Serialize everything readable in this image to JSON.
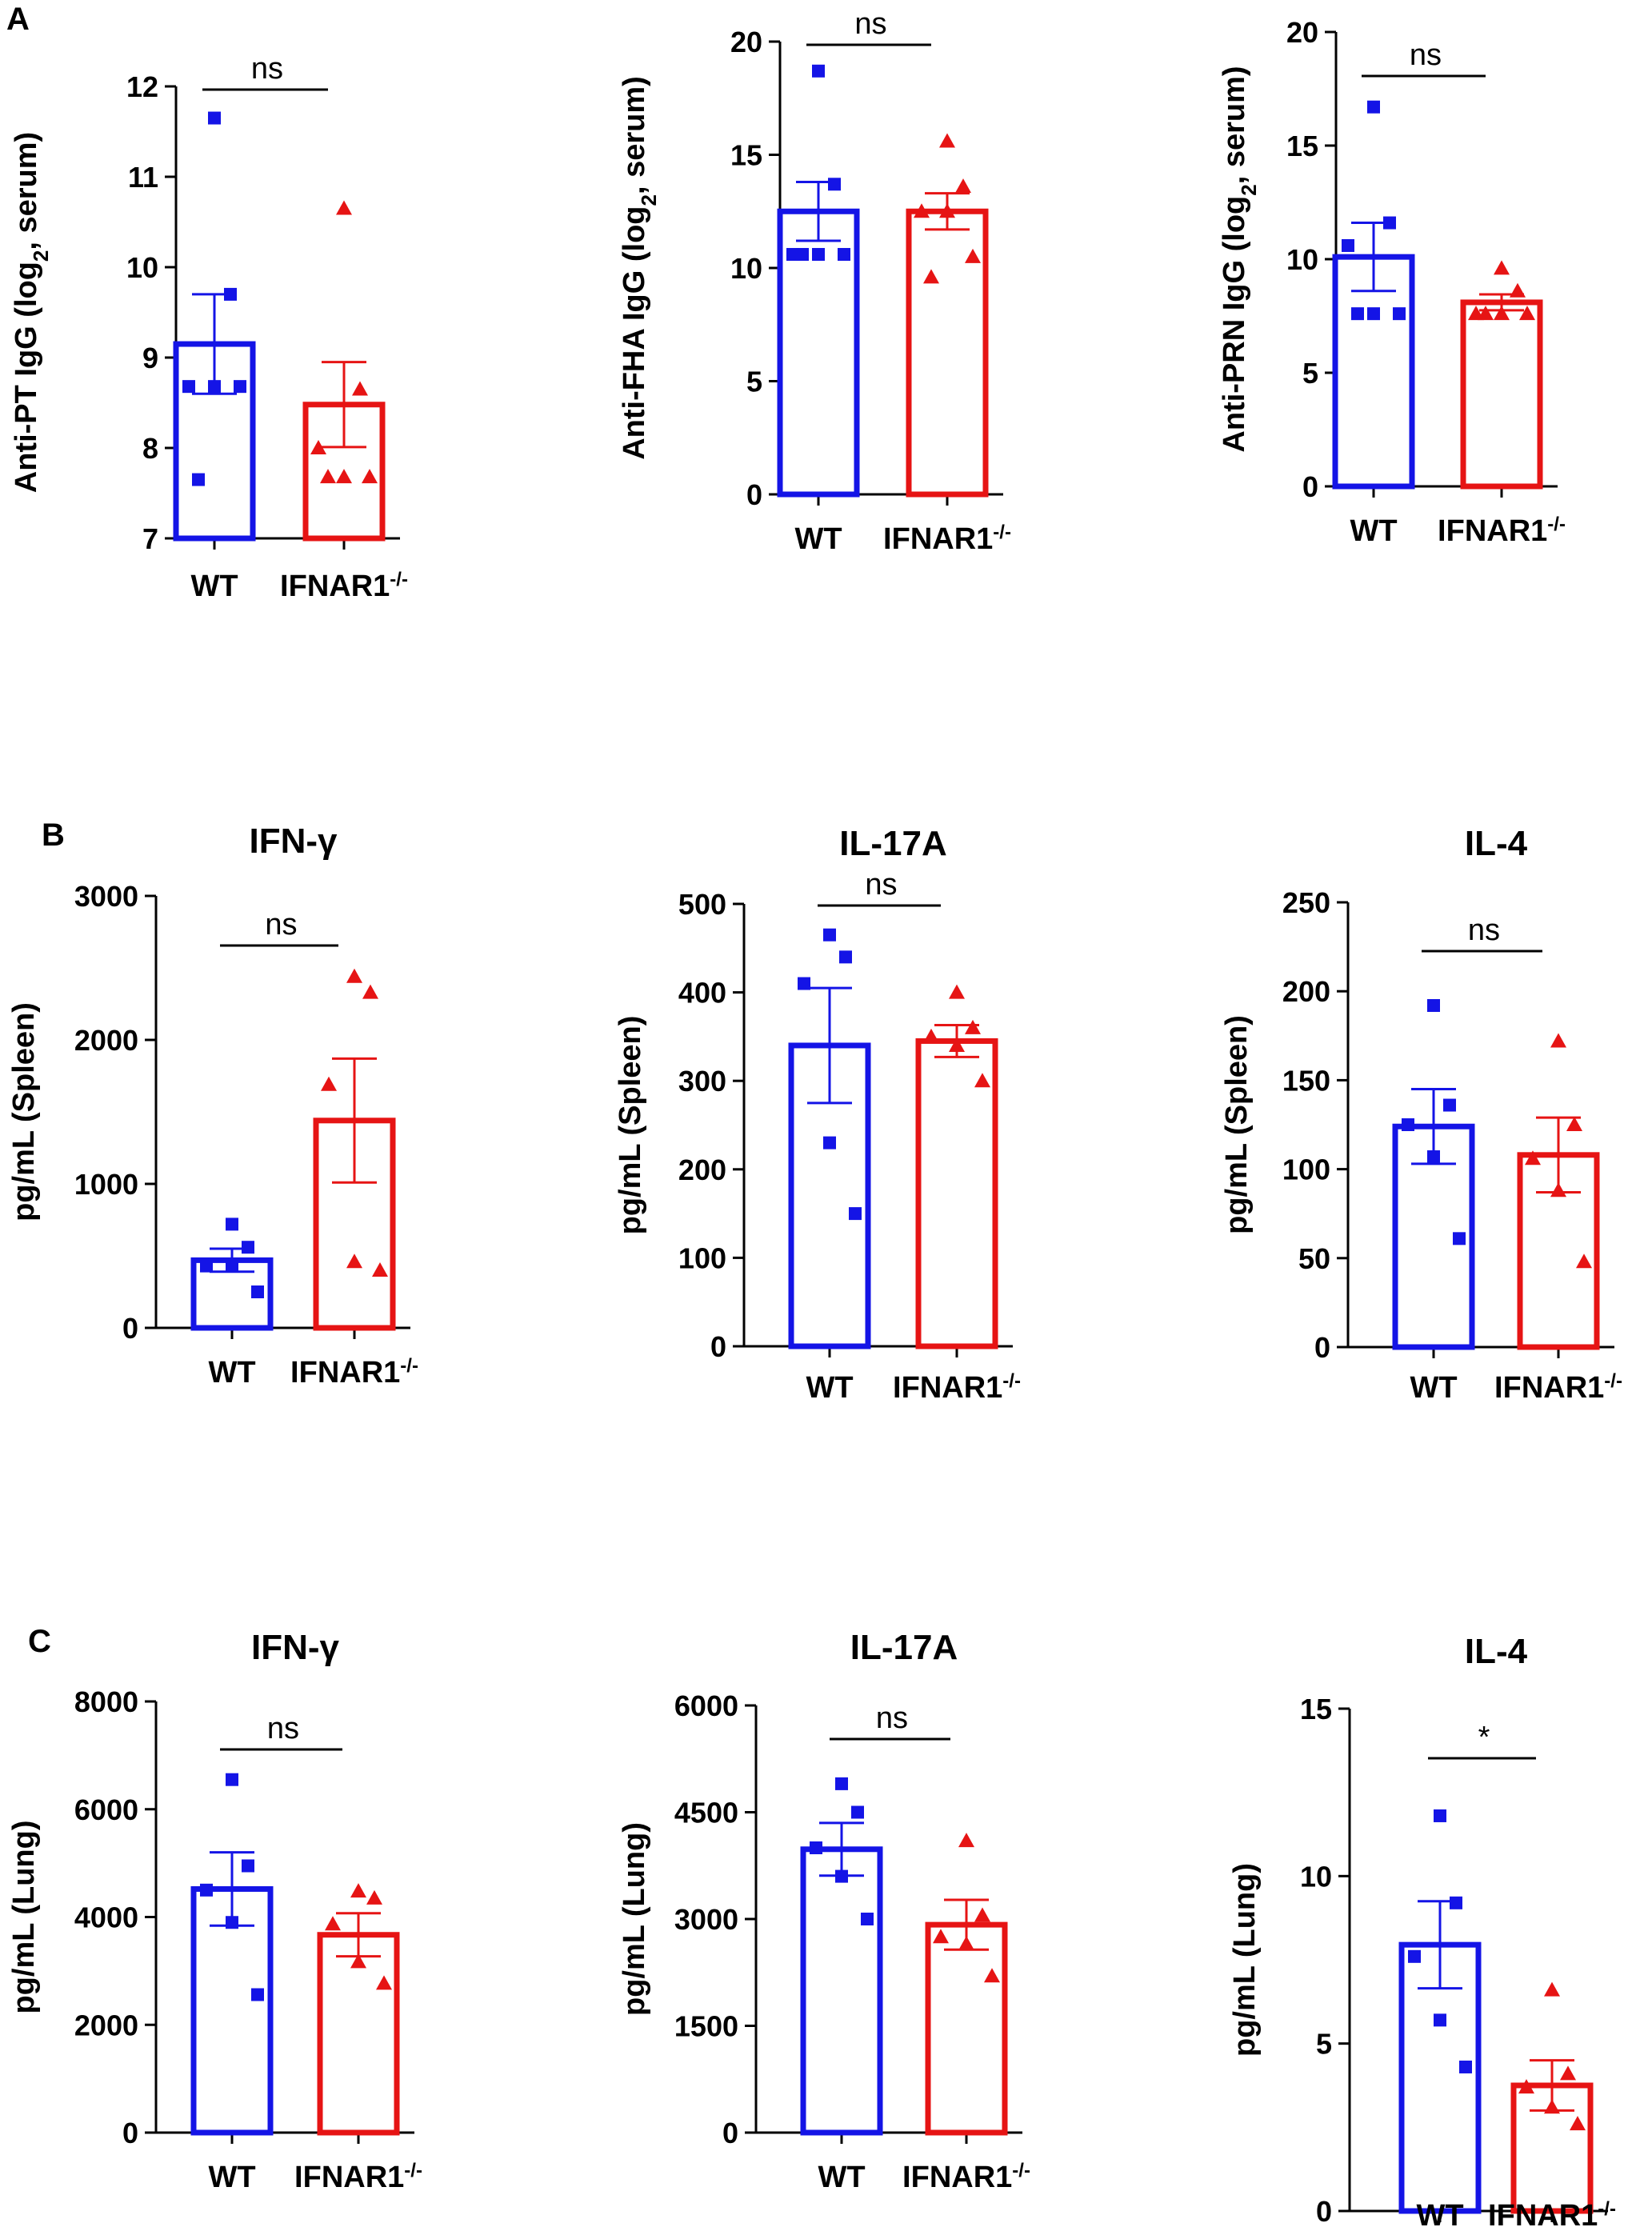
{
  "panel_labels": [
    "A",
    "B",
    "C"
  ],
  "chart_data": [
    {
      "type": "bar",
      "title": "",
      "categories": [
        "WT",
        "IFNAR1"
      ],
      "category_superscripts": [
        "",
        "-/-"
      ],
      "ylabel_main": "Anti-PT IgG (log",
      "ylabel_sub": "2",
      "ylabel_tail": ", serum)",
      "ylim": [
        7,
        12
      ],
      "yticks": [
        7,
        8,
        9,
        10,
        11,
        12
      ],
      "means": [
        9.15,
        8.48
      ],
      "sem": [
        0.55,
        0.47
      ],
      "points": [
        [
          11.65,
          9.7,
          8.68,
          8.68,
          8.68,
          7.65
        ],
        [
          10.65,
          8.65,
          8.0,
          7.68,
          7.68,
          7.68
        ]
      ],
      "significance": "ns",
      "colors": [
        "#1414e6",
        "#e61414"
      ]
    },
    {
      "type": "bar",
      "title": "",
      "categories": [
        "WT",
        "IFNAR1"
      ],
      "category_superscripts": [
        "",
        "-/-"
      ],
      "ylabel_main": "Anti-FHA IgG (log",
      "ylabel_sub": "2",
      "ylabel_tail": ", serum)",
      "ylim": [
        0,
        20
      ],
      "yticks": [
        0,
        5,
        10,
        15,
        20
      ],
      "means": [
        12.5,
        12.5
      ],
      "sem": [
        1.3,
        0.8
      ],
      "points": [
        [
          18.7,
          13.7,
          10.6,
          10.6,
          10.6,
          10.6
        ],
        [
          15.6,
          13.6,
          12.5,
          12.5,
          10.5,
          9.6
        ]
      ],
      "significance": "ns",
      "colors": [
        "#1414e6",
        "#e61414"
      ]
    },
    {
      "type": "bar",
      "title": "",
      "categories": [
        "WT",
        "IFNAR1"
      ],
      "category_superscripts": [
        "",
        "-/-"
      ],
      "ylabel_main": "Anti-PRN IgG (log",
      "ylabel_sub": "2",
      "ylabel_tail": ", serum)",
      "ylim": [
        0,
        20
      ],
      "yticks": [
        0,
        5,
        10,
        15,
        20
      ],
      "means": [
        10.1,
        8.1
      ],
      "sem": [
        1.5,
        0.35
      ],
      "points": [
        [
          16.7,
          11.6,
          10.6,
          7.6,
          7.6,
          7.6
        ],
        [
          9.6,
          8.6,
          7.6,
          7.6,
          7.6,
          7.6
        ]
      ],
      "significance": "ns",
      "colors": [
        "#1414e6",
        "#e61414"
      ]
    },
    {
      "type": "bar",
      "title": "IFN-γ",
      "categories": [
        "WT",
        "IFNAR1"
      ],
      "category_superscripts": [
        "",
        "-/-"
      ],
      "ylabel_main": "pg/mL (Spleen)",
      "ylabel_sub": "",
      "ylabel_tail": "",
      "ylim": [
        0,
        3000
      ],
      "yticks": [
        0,
        1000,
        2000,
        3000
      ],
      "means": [
        470,
        1440
      ],
      "sem": [
        80,
        430
      ],
      "points": [
        [
          720,
          560,
          430,
          430,
          250
        ],
        [
          2440,
          2330,
          1690,
          460,
          400
        ]
      ],
      "significance": "ns",
      "colors": [
        "#1414e6",
        "#e61414"
      ]
    },
    {
      "type": "bar",
      "title": "IL-17A",
      "categories": [
        "WT",
        "IFNAR1"
      ],
      "category_superscripts": [
        "",
        "-/-"
      ],
      "ylabel_main": "pg/mL (Spleen)",
      "ylabel_sub": "",
      "ylabel_tail": "",
      "ylim": [
        0,
        500
      ],
      "yticks": [
        0,
        100,
        200,
        300,
        400,
        500
      ],
      "means": [
        340,
        345
      ],
      "sem": [
        65,
        18
      ],
      "points": [
        [
          465,
          440,
          410,
          230,
          150
        ],
        [
          400,
          360,
          350,
          340,
          300
        ]
      ],
      "significance": "ns",
      "colors": [
        "#1414e6",
        "#e61414"
      ]
    },
    {
      "type": "bar",
      "title": "IL-4",
      "categories": [
        "WT",
        "IFNAR1"
      ],
      "category_superscripts": [
        "",
        "-/-"
      ],
      "ylabel_main": "pg/mL (Spleen)",
      "ylabel_sub": "",
      "ylabel_tail": "",
      "ylim": [
        0,
        250
      ],
      "yticks": [
        0,
        50,
        100,
        150,
        200,
        250
      ],
      "means": [
        124,
        108
      ],
      "sem": [
        21,
        21
      ],
      "points": [
        [
          192,
          136,
          125,
          107,
          61
        ],
        [
          172,
          125,
          106,
          88,
          48
        ]
      ],
      "significance": "ns",
      "colors": [
        "#1414e6",
        "#e61414"
      ]
    },
    {
      "type": "bar",
      "title": "IFN-γ",
      "categories": [
        "WT",
        "IFNAR1"
      ],
      "category_superscripts": [
        "",
        "-/-"
      ],
      "ylabel_main": "pg/mL (Lung)",
      "ylabel_sub": "",
      "ylabel_tail": "",
      "ylim": [
        0,
        8000
      ],
      "yticks": [
        0,
        2000,
        4000,
        6000,
        8000
      ],
      "means": [
        4520,
        3670
      ],
      "sem": [
        680,
        400
      ],
      "points": [
        [
          6550,
          4950,
          4500,
          3900,
          2560
        ],
        [
          4480,
          4350,
          3870,
          3170,
          2770
        ]
      ],
      "significance": "ns",
      "colors": [
        "#1414e6",
        "#e61414"
      ]
    },
    {
      "type": "bar",
      "title": "IL-17A",
      "categories": [
        "WT",
        "IFNAR1"
      ],
      "category_superscripts": [
        "",
        "-/-"
      ],
      "ylabel_main": "pg/mL (Lung)",
      "ylabel_sub": "",
      "ylabel_tail": "",
      "ylim": [
        0,
        6000
      ],
      "yticks": [
        0,
        1500,
        3000,
        4500,
        6000
      ],
      "means": [
        3980,
        2920
      ],
      "sem": [
        370,
        350
      ],
      "points": [
        [
          4900,
          4500,
          4000,
          3600,
          3000
        ],
        [
          4100,
          3050,
          2750,
          2650,
          2200
        ]
      ],
      "significance": "ns",
      "colors": [
        "#1414e6",
        "#e61414"
      ]
    },
    {
      "type": "bar",
      "title": "IL-4",
      "categories": [
        "WT",
        "IFNAR1"
      ],
      "category_superscripts": [
        "",
        "-/-"
      ],
      "ylabel_main": "pg/mL (Lung)",
      "ylabel_sub": "",
      "ylabel_tail": "",
      "ylim": [
        0,
        15
      ],
      "yticks": [
        0,
        5,
        10,
        15
      ],
      "means": [
        7.95,
        3.75
      ],
      "sem": [
        1.3,
        0.75
      ],
      "points": [
        [
          11.8,
          9.2,
          7.6,
          5.7,
          4.3
        ],
        [
          6.6,
          4.1,
          3.7,
          3.1,
          2.6
        ]
      ],
      "significance": "*",
      "colors": [
        "#1414e6",
        "#e61414"
      ]
    }
  ]
}
